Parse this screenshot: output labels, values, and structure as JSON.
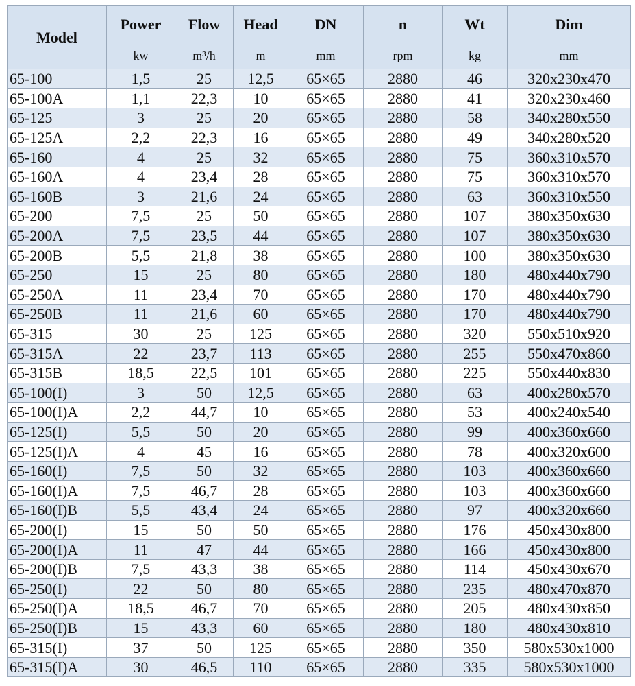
{
  "table": {
    "header": {
      "columns": [
        "Model",
        "Power",
        "Flow",
        "Head",
        "DN",
        "n",
        "Wt",
        "Dim"
      ],
      "units": [
        "kw",
        "m³/h",
        "m",
        "mm",
        "rpm",
        "kg",
        "mm"
      ]
    },
    "rows": [
      [
        "65-100",
        "1,5",
        "25",
        "12,5",
        "65×65",
        "2880",
        "46",
        "320x230x470"
      ],
      [
        "65-100A",
        "1,1",
        "22,3",
        "10",
        "65×65",
        "2880",
        "41",
        "320x230x460"
      ],
      [
        "65-125",
        "3",
        "25",
        "20",
        "65×65",
        "2880",
        "58",
        "340x280x550"
      ],
      [
        "65-125A",
        "2,2",
        "22,3",
        "16",
        "65×65",
        "2880",
        "49",
        "340x280x520"
      ],
      [
        "65-160",
        "4",
        "25",
        "32",
        "65×65",
        "2880",
        "75",
        "360x310x570"
      ],
      [
        "65-160A",
        "4",
        "23,4",
        "28",
        "65×65",
        "2880",
        "75",
        "360x310x570"
      ],
      [
        "65-160B",
        "3",
        "21,6",
        "24",
        "65×65",
        "2880",
        "63",
        "360x310x550"
      ],
      [
        "65-200",
        "7,5",
        "25",
        "50",
        "65×65",
        "2880",
        "107",
        "380x350x630"
      ],
      [
        "65-200A",
        "7,5",
        "23,5",
        "44",
        "65×65",
        "2880",
        "107",
        "380x350x630"
      ],
      [
        "65-200B",
        "5,5",
        "21,8",
        "38",
        "65×65",
        "2880",
        "100",
        "380x350x630"
      ],
      [
        "65-250",
        "15",
        "25",
        "80",
        "65×65",
        "2880",
        "180",
        "480x440x790"
      ],
      [
        "65-250A",
        "11",
        "23,4",
        "70",
        "65×65",
        "2880",
        "170",
        "480x440x790"
      ],
      [
        "65-250B",
        "11",
        "21,6",
        "60",
        "65×65",
        "2880",
        "170",
        "480x440x790"
      ],
      [
        "65-315",
        "30",
        "25",
        "125",
        "65×65",
        "2880",
        "320",
        "550x510x920"
      ],
      [
        "65-315A",
        "22",
        "23,7",
        "113",
        "65×65",
        "2880",
        "255",
        "550x470x860"
      ],
      [
        "65-315B",
        "18,5",
        "22,5",
        "101",
        "65×65",
        "2880",
        "225",
        "550x440x830"
      ],
      [
        "65-100(I)",
        "3",
        "50",
        "12,5",
        "65×65",
        "2880",
        "63",
        "400x280x570"
      ],
      [
        "65-100(I)A",
        "2,2",
        "44,7",
        "10",
        "65×65",
        "2880",
        "53",
        "400x240x540"
      ],
      [
        "65-125(I)",
        "5,5",
        "50",
        "20",
        "65×65",
        "2880",
        "99",
        "400x360x660"
      ],
      [
        "65-125(I)A",
        "4",
        "45",
        "16",
        "65×65",
        "2880",
        "78",
        "400x320x600"
      ],
      [
        "65-160(I)",
        "7,5",
        "50",
        "32",
        "65×65",
        "2880",
        "103",
        "400x360x660"
      ],
      [
        "65-160(I)A",
        "7,5",
        "46,7",
        "28",
        "65×65",
        "2880",
        "103",
        "400x360x660"
      ],
      [
        "65-160(I)B",
        "5,5",
        "43,4",
        "24",
        "65×65",
        "2880",
        "97",
        "400x320x660"
      ],
      [
        "65-200(I)",
        "15",
        "50",
        "50",
        "65×65",
        "2880",
        "176",
        "450x430x800"
      ],
      [
        "65-200(I)A",
        "11",
        "47",
        "44",
        "65×65",
        "2880",
        "166",
        "450x430x800"
      ],
      [
        "65-200(I)B",
        "7,5",
        "43,3",
        "38",
        "65×65",
        "2880",
        "114",
        "450x430x670"
      ],
      [
        "65-250(I)",
        "22",
        "50",
        "80",
        "65×65",
        "2880",
        "235",
        "480x470x870"
      ],
      [
        "65-250(I)A",
        "18,5",
        "46,7",
        "70",
        "65×65",
        "2880",
        "205",
        "480x430x850"
      ],
      [
        "65-250(I)B",
        "15",
        "43,3",
        "60",
        "65×65",
        "2880",
        "180",
        "480x430x810"
      ],
      [
        "65-315(I)",
        "37",
        "50",
        "125",
        "65×65",
        "2880",
        "350",
        "580x530x1000"
      ],
      [
        "65-315(I)A",
        "30",
        "46,5",
        "110",
        "65×65",
        "2880",
        "335",
        "580x530x1000"
      ]
    ]
  }
}
